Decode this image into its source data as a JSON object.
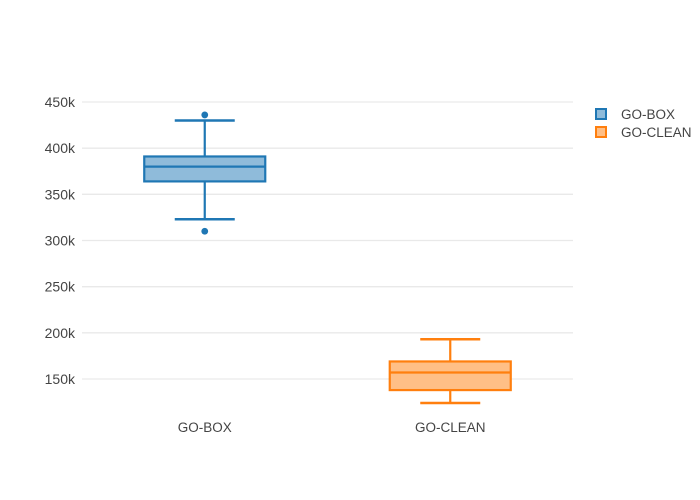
{
  "chart_data": {
    "type": "box",
    "title": "",
    "xlabel": "",
    "ylabel": "",
    "categories": [
      "GO-BOX",
      "GO-CLEAN"
    ],
    "series": [
      {
        "name": "GO-BOX",
        "line_color": "#1f77b4",
        "fill_color": "#8fbbda",
        "stats": {
          "lowerfence": 323000,
          "q1": 364000,
          "median": 380000,
          "q3": 391000,
          "upperfence": 430000
        },
        "outliers": [
          436000,
          310000
        ]
      },
      {
        "name": "GO-CLEAN",
        "line_color": "#ff7f0e",
        "fill_color": "#ffbf86",
        "stats": {
          "lowerfence": 124000,
          "q1": 138000,
          "median": 157000,
          "q3": 169000,
          "upperfence": 193000
        },
        "outliers": []
      }
    ],
    "y_ticks": [
      {
        "value": 450000,
        "label": "450k"
      },
      {
        "value": 400000,
        "label": "400k"
      },
      {
        "value": 350000,
        "label": "350k"
      },
      {
        "value": 300000,
        "label": "300k"
      },
      {
        "value": 250000,
        "label": "250k"
      },
      {
        "value": 200000,
        "label": "200k"
      },
      {
        "value": 150000,
        "label": "150k"
      }
    ],
    "y_range": [
      110000,
      462000
    ],
    "grid": true,
    "legend": {
      "position": "top-right",
      "entries": [
        "GO-BOX",
        "GO-CLEAN"
      ]
    },
    "colors": {
      "background": "#ffffff",
      "grid_color": "#e9e9e9",
      "text_color": "#444444"
    }
  }
}
